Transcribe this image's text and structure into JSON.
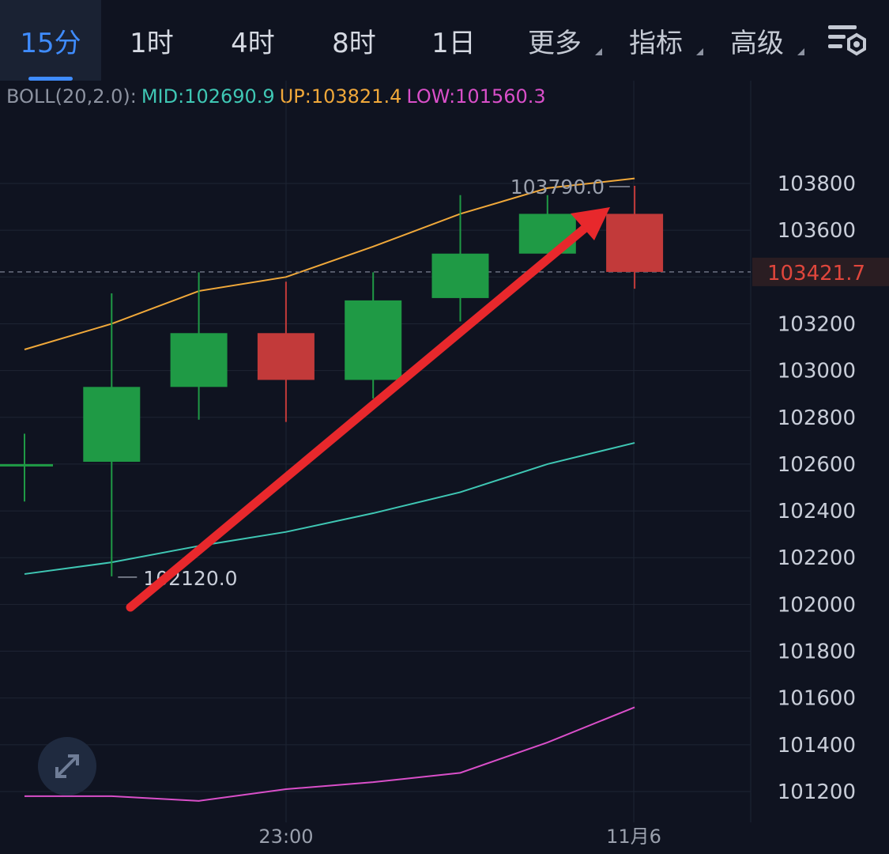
{
  "tabs": [
    {
      "label": "15分",
      "active": true
    },
    {
      "label": "1时",
      "active": false
    },
    {
      "label": "4时",
      "active": false
    },
    {
      "label": "8时",
      "active": false
    },
    {
      "label": "1日",
      "active": false
    },
    {
      "label": "更多",
      "active": false,
      "dropdown": true
    },
    {
      "label": "指标",
      "active": false,
      "dropdown": true
    },
    {
      "label": "高级",
      "active": false,
      "dropdown": true
    }
  ],
  "settings_icon": "chart-settings-icon",
  "expand_icon": "expand-arrows-icon",
  "boll": {
    "label": "BOLL(20,2.0):",
    "mid": "MID:102690.9",
    "up": "UP:103821.4",
    "low": "LOW:101560.3"
  },
  "colors": {
    "background": "#0f1320",
    "up_candle": "#1f9a45",
    "down_candle": "#c23a3a",
    "mid_line": "#3fc7b4",
    "up_line": "#f0a83a",
    "low_line": "#d94fc9",
    "active_tab": "#3f8cff",
    "arrow": "#e8282c",
    "current_price": "#e0463c"
  },
  "chart_data": {
    "type": "candlestick",
    "y_ticks": [
      "103800",
      "103600",
      "103200",
      "103000",
      "102800",
      "102600",
      "102400",
      "102200",
      "102000",
      "101800",
      "101600",
      "101400",
      "101200"
    ],
    "x_labels": [
      "23:00",
      "11月6"
    ],
    "current_price": "103421.7",
    "high_label": "103790.0",
    "low_label": "102120.0",
    "candles": [
      {
        "open": 102600,
        "high": 102730,
        "low": 102440,
        "close": 102600
      },
      {
        "open": 102610,
        "high": 103330,
        "low": 102120,
        "close": 102930
      },
      {
        "open": 102930,
        "high": 103420,
        "low": 102790,
        "close": 103160
      },
      {
        "open": 103160,
        "high": 103380,
        "low": 102780,
        "close": 102960
      },
      {
        "open": 102960,
        "high": 103420,
        "low": 102880,
        "close": 103300
      },
      {
        "open": 103310,
        "high": 103750,
        "low": 103210,
        "close": 103500
      },
      {
        "open": 103500,
        "high": 103750,
        "low": 103500,
        "close": 103670
      },
      {
        "open": 103670,
        "high": 103790,
        "low": 103350,
        "close": 103421.7
      }
    ],
    "series": [
      {
        "key": "up",
        "values": [
          103090,
          103200,
          103340,
          103400,
          103530,
          103670,
          103780,
          103821.4
        ]
      },
      {
        "key": "mid",
        "values": [
          102130,
          102180,
          102250,
          102310,
          102390,
          102480,
          102600,
          102690.9
        ]
      },
      {
        "key": "low",
        "values": [
          101180,
          101180,
          101160,
          101210,
          101240,
          101280,
          101410,
          101560.3
        ]
      }
    ],
    "annotation": "arrow-up-trend"
  }
}
